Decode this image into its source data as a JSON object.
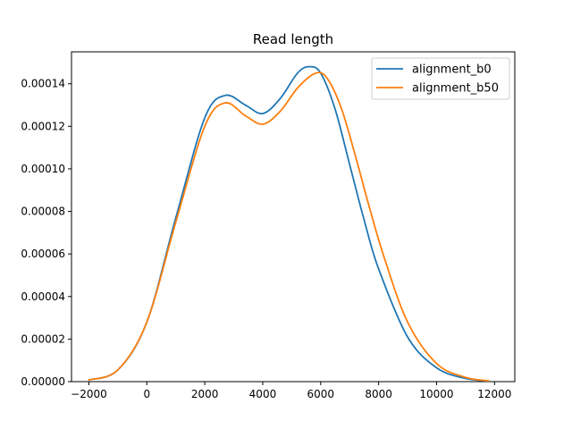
{
  "chart_data": {
    "type": "line",
    "title": "Read length",
    "xlabel": "",
    "ylabel": "",
    "xlim": [
      -2600,
      12700
    ],
    "ylim": [
      0,
      0.000155
    ],
    "xticks": [
      -2000,
      0,
      2000,
      4000,
      6000,
      8000,
      10000,
      12000
    ],
    "xtick_labels": [
      "−2000",
      "0",
      "2000",
      "4000",
      "6000",
      "8000",
      "10000",
      "12000"
    ],
    "yticks": [
      0,
      2e-05,
      4e-05,
      6e-05,
      8e-05,
      0.0001,
      0.00012,
      0.00014
    ],
    "ytick_labels": [
      "0.00000",
      "0.00002",
      "0.00004",
      "0.00006",
      "0.00008",
      "0.00010",
      "0.00012",
      "0.00014"
    ],
    "grid": false,
    "legend_position": "top-right",
    "series": [
      {
        "name": "alignment_b0",
        "color": "#1f77b4",
        "x": [
          -2000,
          -1000,
          0,
          1000,
          2000,
          2700,
          3400,
          4000,
          4600,
          5200,
          5600,
          6000,
          6500,
          7000,
          7500,
          8000,
          9000,
          10000,
          11000,
          11800
        ],
        "y": [
          8e-07,
          5.5e-06,
          2.8e-05,
          7.7e-05,
          0.000124,
          0.0001345,
          0.00013,
          0.000126,
          0.000133,
          0.000145,
          0.000148,
          0.000145,
          0.000128,
          0.000102,
          7.6e-05,
          5.3e-05,
          2.1e-05,
          6.5e-06,
          1.5e-06,
          3e-07
        ]
      },
      {
        "name": "alignment_b50",
        "color": "#ff7f0e",
        "x": [
          -2000,
          -1000,
          0,
          1000,
          2000,
          2700,
          3400,
          4000,
          4600,
          5200,
          5800,
          6200,
          6700,
          7200,
          7700,
          8200,
          9000,
          10000,
          11000,
          11800
        ],
        "y": [
          8e-07,
          5.5e-06,
          2.8e-05,
          7.5e-05,
          0.00012,
          0.000131,
          0.000125,
          0.000121,
          0.000127,
          0.000138,
          0.0001448,
          0.000143,
          0.000129,
          0.000106,
          8.1e-05,
          5.8e-05,
          2.8e-05,
          8.5e-06,
          2e-06,
          4e-07
        ]
      }
    ]
  }
}
